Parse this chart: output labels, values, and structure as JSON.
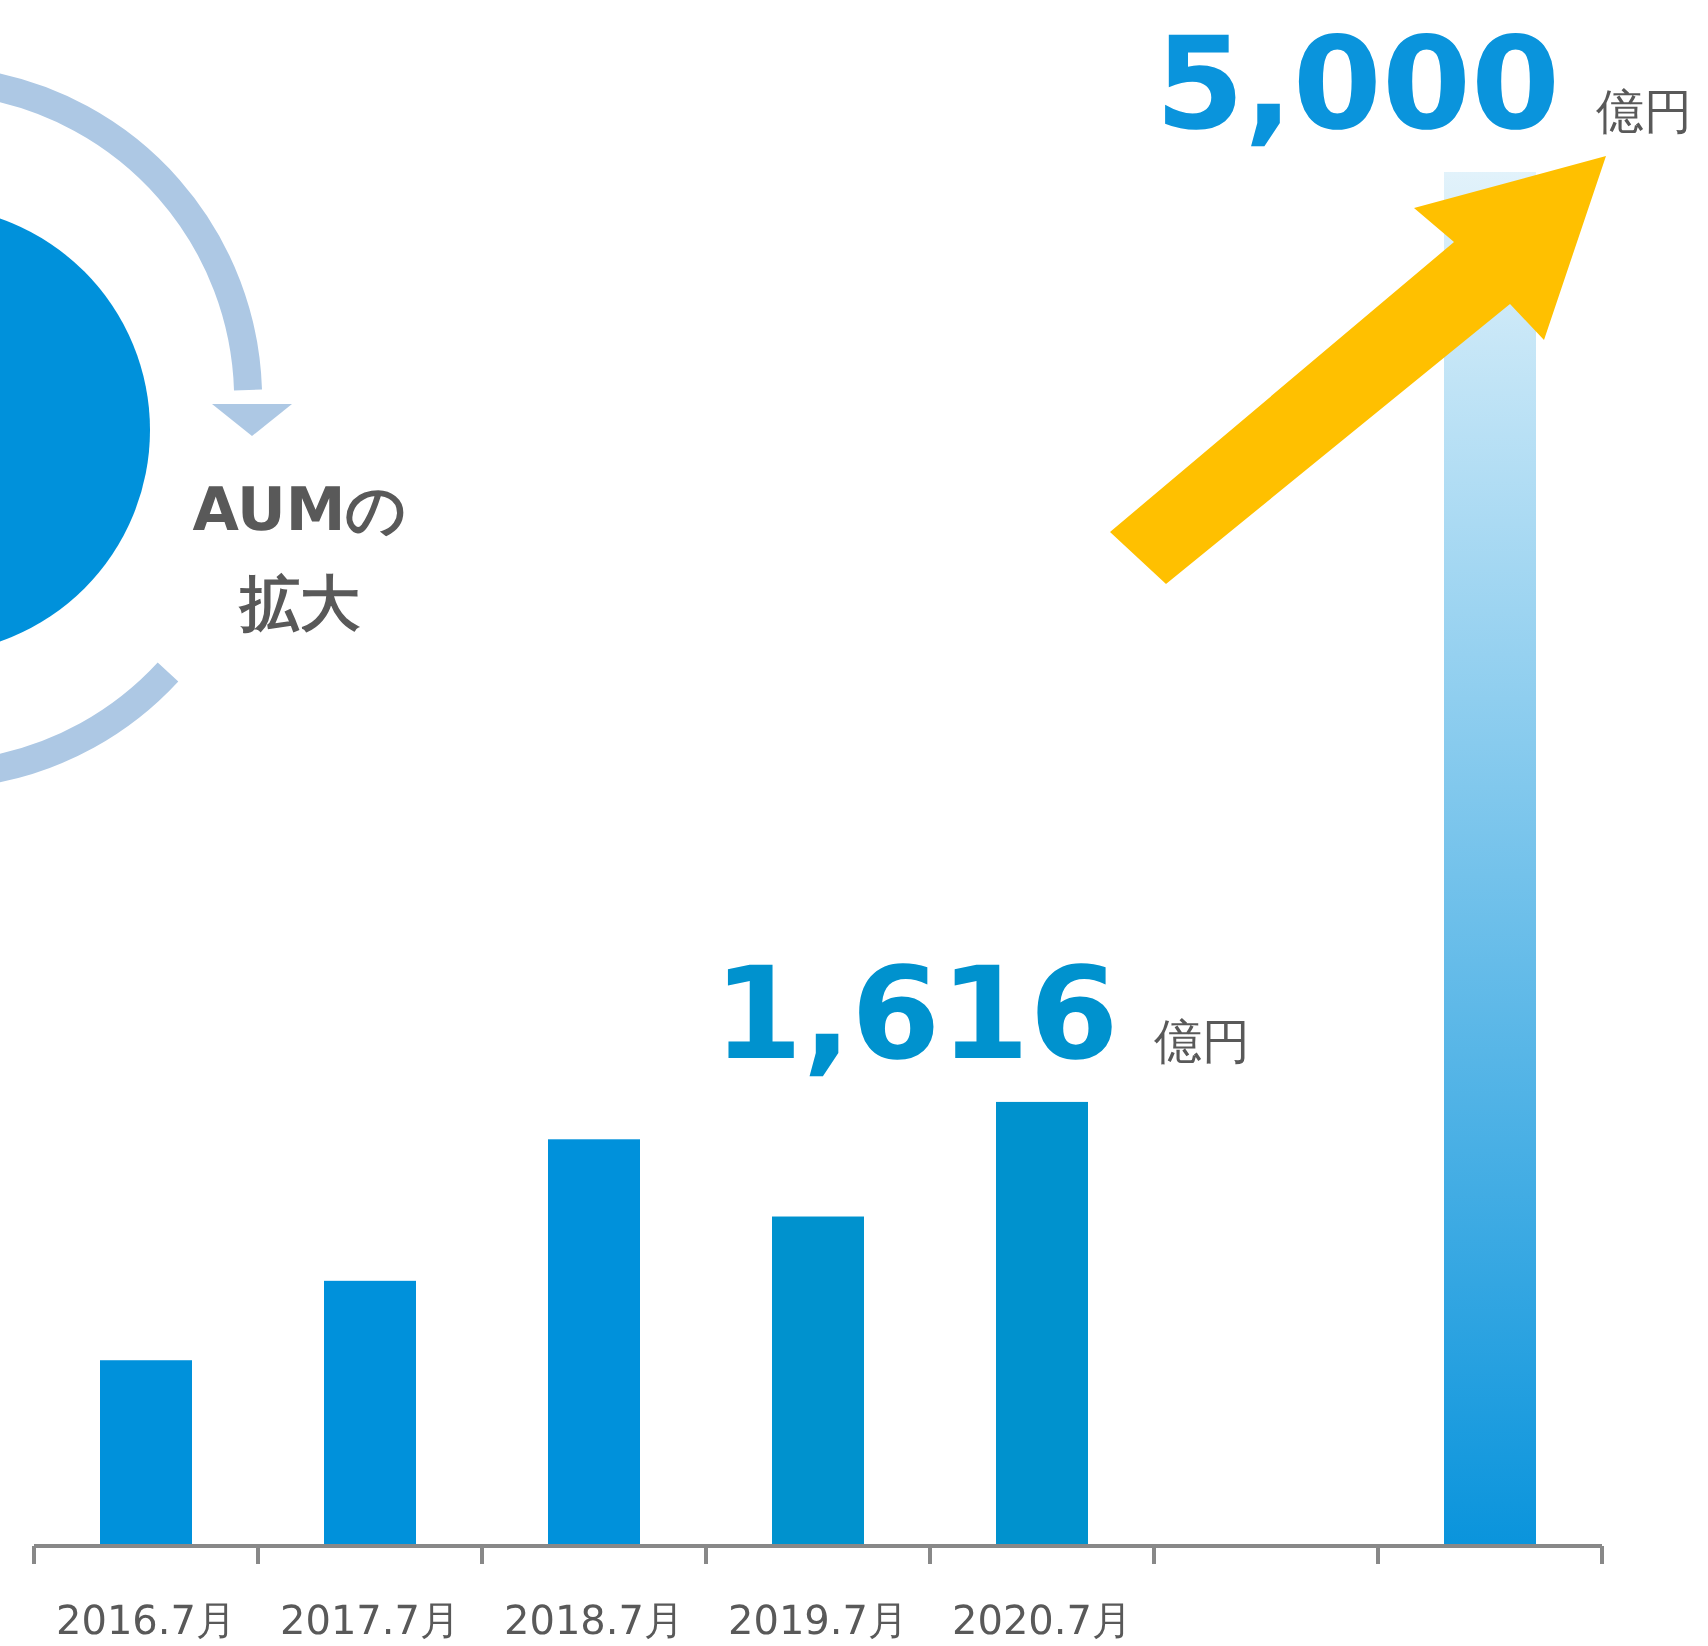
{
  "chart_data": {
    "type": "bar",
    "categories": [
      "2016.7月",
      "2017.7月",
      "2018.7月",
      "2019.7月",
      "2020.7月",
      null,
      null
    ],
    "values": [
      676,
      965,
      1480,
      1199,
      1616,
      null,
      5000
    ],
    "ylim": [
      0,
      5000
    ],
    "colors": [
      "#0091db",
      "#0091db",
      "#0091db",
      "#0092ce",
      "#0092ce",
      null,
      "#0a94dc"
    ],
    "value_labels": [
      null,
      null,
      null,
      null,
      "1,616 億円",
      null,
      "5,000 億円"
    ],
    "annotations": [
      "AUMの",
      "拡大"
    ]
  }
}
